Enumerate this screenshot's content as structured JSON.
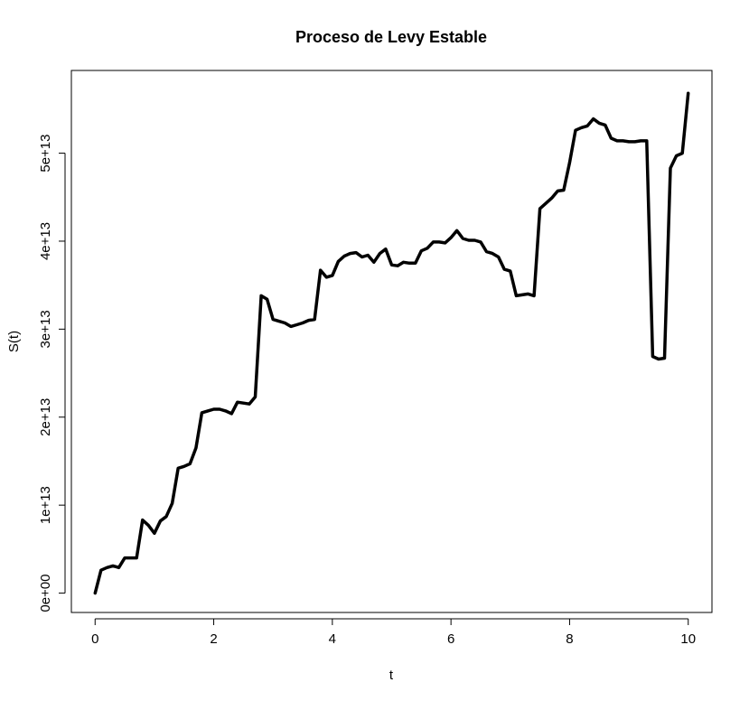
{
  "chart_data": {
    "type": "line",
    "title": "Proceso de Levy Estable",
    "xlabel": "t",
    "ylabel": "S(t)",
    "xlim": [
      -0.4,
      10.4
    ],
    "ylim": [
      -2200000000000.0,
      59400000000000.0
    ],
    "xticks": [
      0,
      2,
      4,
      6,
      8,
      10
    ],
    "xtick_labels": [
      "0",
      "2",
      "4",
      "6",
      "8",
      "10"
    ],
    "yticks": [
      0,
      10000000000000.0,
      20000000000000.0,
      30000000000000.0,
      40000000000000.0,
      50000000000000.0
    ],
    "ytick_labels": [
      "0e+00",
      "1e+13",
      "2e+13",
      "3e+13",
      "4e+13",
      "5e+13"
    ],
    "grid": false,
    "legend": "none",
    "line_color": "#000000",
    "series": [
      {
        "x": [
          0.0,
          0.1,
          0.2,
          0.3,
          0.4,
          0.5,
          0.6,
          0.7,
          0.8,
          0.9,
          1.0,
          1.1,
          1.2,
          1.3,
          1.4,
          1.5,
          1.6,
          1.7,
          1.8,
          1.9,
          2.0,
          2.1,
          2.2,
          2.3,
          2.4,
          2.5,
          2.6,
          2.7,
          2.8,
          2.9,
          3.0,
          3.1,
          3.2,
          3.3,
          3.4,
          3.5,
          3.6,
          3.7,
          3.8,
          3.9,
          4.0,
          4.1,
          4.2,
          4.3,
          4.4,
          4.5,
          4.6,
          4.7,
          4.8,
          4.9,
          5.0,
          5.1,
          5.2,
          5.3,
          5.4,
          5.5,
          5.6,
          5.7,
          5.8,
          5.9,
          6.0,
          6.1,
          6.2,
          6.3,
          6.4,
          6.5,
          6.6,
          6.7,
          6.8,
          6.9,
          7.0,
          7.1,
          7.2,
          7.3,
          7.4,
          7.5,
          7.6,
          7.7,
          7.8,
          7.9,
          8.0,
          8.1,
          8.2,
          8.3,
          8.4,
          8.5,
          8.6,
          8.7,
          8.8,
          8.9,
          9.0,
          9.1,
          9.2,
          9.3,
          9.4,
          9.5,
          9.6,
          9.7,
          9.8,
          9.9,
          10.0
        ],
        "y": [
          0.0,
          2600000000000.0,
          2900000000000.0,
          3100000000000.0,
          2900000000000.0,
          4000000000000.0,
          4000000000000.0,
          4000000000000.0,
          8300000000000.0,
          7700000000000.0,
          6800000000000.0,
          8200000000000.0,
          8700000000000.0,
          10200000000000.0,
          14200000000000.0,
          14400000000000.0,
          14700000000000.0,
          16500000000000.0,
          20500000000000.0,
          20700000000000.0,
          20900000000000.0,
          20900000000000.0,
          20700000000000.0,
          20400000000000.0,
          21700000000000.0,
          21600000000000.0,
          21500000000000.0,
          22300000000000.0,
          33800000000000.0,
          33400000000000.0,
          31100000000000.0,
          30900000000000.0,
          30700000000000.0,
          30300000000000.0,
          30500000000000.0,
          30700000000000.0,
          31000000000000.0,
          31100000000000.0,
          36700000000000.0,
          35900000000000.0,
          36100000000000.0,
          37700000000000.0,
          38300000000000.0,
          38600000000000.0,
          38700000000000.0,
          38200000000000.0,
          38400000000000.0,
          37600000000000.0,
          38600000000000.0,
          39100000000000.0,
          37300000000000.0,
          37200000000000.0,
          37600000000000.0,
          37500000000000.0,
          37500000000000.0,
          38900000000000.0,
          39200000000000.0,
          39900000000000.0,
          39900000000000.0,
          39800000000000.0,
          40400000000000.0,
          41200000000000.0,
          40300000000000.0,
          40100000000000.0,
          40100000000000.0,
          39900000000000.0,
          38800000000000.0,
          38600000000000.0,
          38200000000000.0,
          36800000000000.0,
          36600000000000.0,
          33800000000000.0,
          33900000000000.0,
          34000000000000.0,
          33800000000000.0,
          43700000000000.0,
          44300000000000.0,
          44900000000000.0,
          45700000000000.0,
          45800000000000.0,
          48900000000000.0,
          52600000000000.0,
          52900000000000.0,
          53100000000000.0,
          53900000000000.0,
          53400000000000.0,
          53200000000000.0,
          51700000000000.0,
          51400000000000.0,
          51400000000000.0,
          51300000000000.0,
          51300000000000.0,
          51400000000000.0,
          51400000000000.0,
          26900000000000.0,
          26600000000000.0,
          26700000000000.0,
          48300000000000.0,
          49700000000000.0,
          50000000000000.0,
          56800000000000.0
        ]
      }
    ]
  }
}
